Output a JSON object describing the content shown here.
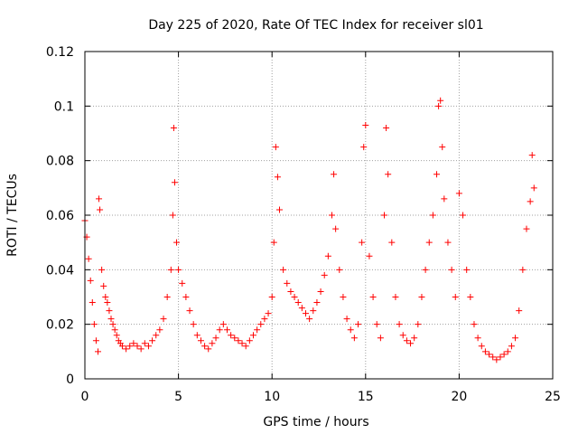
{
  "chart_data": {
    "type": "scatter",
    "title": "Day 225 of 2020, Rate Of TEC Index for receiver sl01",
    "xlabel": "GPS time / hours",
    "ylabel": "ROTI / TECUs",
    "xlim": [
      0,
      25
    ],
    "ylim": [
      0,
      0.12
    ],
    "xticks": [
      0,
      5,
      10,
      15,
      20,
      25
    ],
    "yticks": [
      0,
      0.02,
      0.04,
      0.06,
      0.08,
      0.1,
      0.12
    ],
    "xtick_labels": [
      "0",
      "5",
      "10",
      "15",
      "20",
      "25"
    ],
    "ytick_labels": [
      "0",
      "0.02",
      "0.04",
      "0.06",
      "0.08",
      "0.1",
      "0.12"
    ],
    "grid": true,
    "legend": "none",
    "marker": "plus",
    "marker_color": "#ff0000",
    "series": [
      {
        "x": [
          0.0,
          0.1,
          0.2,
          0.3,
          0.4,
          0.5,
          0.6,
          0.7,
          0.75,
          0.8,
          0.9,
          1.0,
          1.1,
          1.2,
          1.3,
          1.4,
          1.5,
          1.6,
          1.7,
          1.8,
          1.9,
          2.0,
          2.2,
          2.4,
          2.6,
          2.8,
          3.0,
          3.2,
          3.4,
          3.6,
          3.8,
          4.0,
          4.2,
          4.4,
          4.6,
          4.7,
          4.75,
          4.8,
          4.9,
          5.0,
          5.2,
          5.4,
          5.6,
          5.8,
          6.0,
          6.2,
          6.4,
          6.6,
          6.8,
          7.0,
          7.2,
          7.4,
          7.6,
          7.8,
          8.0,
          8.2,
          8.4,
          8.6,
          8.8,
          9.0,
          9.2,
          9.4,
          9.6,
          9.8,
          10.0,
          10.1,
          10.2,
          10.3,
          10.4,
          10.6,
          10.8,
          11.0,
          11.2,
          11.4,
          11.6,
          11.8,
          12.0,
          12.2,
          12.4,
          12.6,
          12.8,
          13.0,
          13.2,
          13.3,
          13.4,
          13.6,
          13.8,
          14.0,
          14.2,
          14.4,
          14.6,
          14.8,
          14.9,
          15.0,
          15.2,
          15.4,
          15.6,
          15.8,
          16.0,
          16.1,
          16.2,
          16.4,
          16.6,
          16.8,
          17.0,
          17.2,
          17.4,
          17.6,
          17.8,
          18.0,
          18.2,
          18.4,
          18.6,
          18.8,
          18.9,
          19.0,
          19.1,
          19.2,
          19.4,
          19.6,
          19.8,
          20.0,
          20.2,
          20.4,
          20.6,
          20.8,
          21.0,
          21.2,
          21.4,
          21.6,
          21.8,
          22.0,
          22.2,
          22.4,
          22.6,
          22.8,
          23.0,
          23.2,
          23.4,
          23.6,
          23.8,
          23.9,
          24.0
        ],
        "y": [
          0.058,
          0.052,
          0.044,
          0.036,
          0.028,
          0.02,
          0.014,
          0.01,
          0.066,
          0.062,
          0.04,
          0.034,
          0.03,
          0.028,
          0.025,
          0.022,
          0.02,
          0.018,
          0.016,
          0.014,
          0.013,
          0.012,
          0.011,
          0.012,
          0.013,
          0.012,
          0.011,
          0.013,
          0.012,
          0.014,
          0.016,
          0.018,
          0.022,
          0.03,
          0.04,
          0.06,
          0.092,
          0.072,
          0.05,
          0.04,
          0.035,
          0.03,
          0.025,
          0.02,
          0.016,
          0.014,
          0.012,
          0.011,
          0.013,
          0.015,
          0.018,
          0.02,
          0.018,
          0.016,
          0.015,
          0.014,
          0.013,
          0.012,
          0.014,
          0.016,
          0.018,
          0.02,
          0.022,
          0.024,
          0.03,
          0.05,
          0.085,
          0.074,
          0.062,
          0.04,
          0.035,
          0.032,
          0.03,
          0.028,
          0.026,
          0.024,
          0.022,
          0.025,
          0.028,
          0.032,
          0.038,
          0.045,
          0.06,
          0.075,
          0.055,
          0.04,
          0.03,
          0.022,
          0.018,
          0.015,
          0.02,
          0.05,
          0.085,
          0.093,
          0.045,
          0.03,
          0.02,
          0.015,
          0.06,
          0.092,
          0.075,
          0.05,
          0.03,
          0.02,
          0.016,
          0.014,
          0.013,
          0.015,
          0.02,
          0.03,
          0.04,
          0.05,
          0.06,
          0.075,
          0.1,
          0.102,
          0.085,
          0.066,
          0.05,
          0.04,
          0.03,
          0.068,
          0.06,
          0.04,
          0.03,
          0.02,
          0.015,
          0.012,
          0.01,
          0.009,
          0.008,
          0.007,
          0.008,
          0.009,
          0.01,
          0.012,
          0.015,
          0.025,
          0.04,
          0.055,
          0.065,
          0.082,
          0.07
        ]
      }
    ]
  }
}
